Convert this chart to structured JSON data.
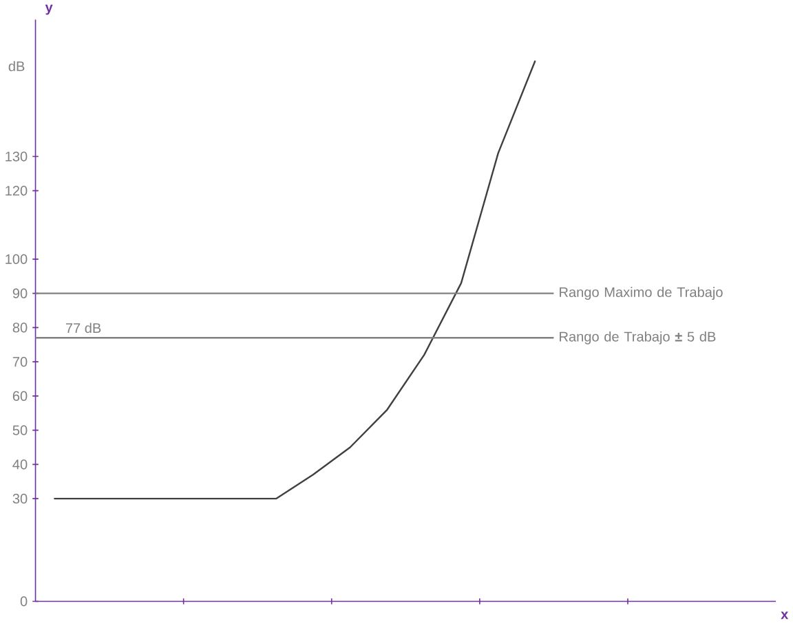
{
  "chart_data": {
    "type": "line",
    "ylabel": "y",
    "categories": [
      null,
      null,
      null,
      null,
      null,
      null,
      null,
      null,
      null,
      null,
      null,
      null,
      null,
      null
    ],
    "ylim": [
      0,
      170
    ],
    "yticks": [
      0,
      30,
      40,
      50,
      60,
      70,
      80,
      90,
      100,
      120,
      130
    ],
    "tick_labels": "y",
    "series": [
      {
        "color": "#404040",
        "values": [
          30,
          30,
          30,
          30,
          30,
          30,
          30,
          37,
          45,
          56,
          72,
          93,
          131,
          158
        ]
      }
    ],
    "ref_lines": [
      {
        "axis": "y",
        "value": 90,
        "label": "Rango Maximo de Trabajo",
        "color": "#808080"
      },
      {
        "axis": "y",
        "value": 77,
        "label": "Rango de Trabajo  **±** 5 dB",
        "color": "#808080"
      }
    ],
    "annotations": [
      "dB",
      "x",
      "77 dB"
    ]
  }
}
